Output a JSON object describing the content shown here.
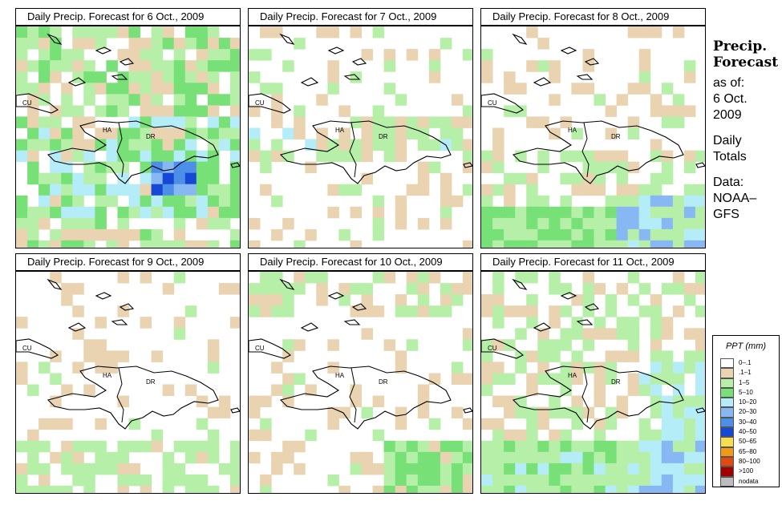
{
  "sidebar": {
    "title_line1": "Precip.",
    "title_line2": "Forecast",
    "asof_l1": "as of:",
    "asof_l2": "6 Oct.",
    "asof_l3": "2009",
    "totals_l1": "Daily",
    "totals_l2": "Totals",
    "data_l1": "Data:",
    "data_l2": "NOAA–",
    "data_l3": "GFS"
  },
  "labels": {
    "cuba": "CU",
    "haiti": "HA",
    "dr": "DR"
  },
  "legend": {
    "title": "PPT (mm)",
    "items": [
      {
        "label": "0–.1",
        "color": "#ffffff"
      },
      {
        "label": ".1–1",
        "color": "#e9d3b1"
      },
      {
        "label": "1–5",
        "color": "#b6f0a8"
      },
      {
        "label": "5–10",
        "color": "#77e077"
      },
      {
        "label": "10–20",
        "color": "#b4ecf8"
      },
      {
        "label": "20–30",
        "color": "#88b8f4"
      },
      {
        "label": "30–40",
        "color": "#4c8ee8"
      },
      {
        "label": "40–50",
        "color": "#1648d6"
      },
      {
        "label": "50–65",
        "color": "#f6de52"
      },
      {
        "label": "65–80",
        "color": "#f09a18"
      },
      {
        "label": "80–100",
        "color": "#e04a10"
      },
      {
        "label": ">100",
        "color": "#a00000"
      },
      {
        "label": "nodata",
        "color": "#bdbdbd"
      }
    ]
  },
  "panels": [
    {
      "title": "Daily Precip. Forecast for  6 Oct., 2009",
      "pattern": "p1"
    },
    {
      "title": "Daily Precip. Forecast for  7 Oct., 2009",
      "pattern": "p2"
    },
    {
      "title": "Daily Precip. Forecast for  8 Oct., 2009",
      "pattern": "p3"
    },
    {
      "title": "Daily Precip. Forecast for  9 Oct., 2009",
      "pattern": "p4"
    },
    {
      "title": "Daily Precip. Forecast for  10 Oct., 2009",
      "pattern": "p5"
    },
    {
      "title": "Daily Precip. Forecast for  11 Oct., 2009",
      "pattern": "p6"
    }
  ]
}
